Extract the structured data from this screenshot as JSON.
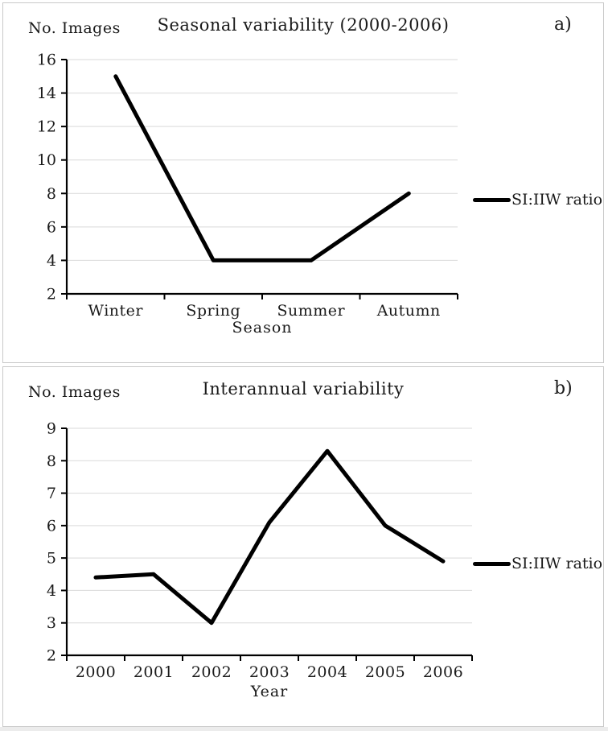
{
  "page": {
    "background": "#ffffff",
    "bottom_edge_color": "#ececec"
  },
  "colors": {
    "line": "#000000",
    "gridline": "#d9d9d9",
    "axis": "#000000",
    "text": "#1a1a1a",
    "panel_border": "#c9c9c9"
  },
  "panels": [
    {
      "corner_label": "a)",
      "y_axis_label": "No. Images",
      "title": "Seasonal variability (2000-2006)",
      "x_axis_label": "Season",
      "legend_label": "SI:IIW ratio"
    },
    {
      "corner_label": "b)",
      "y_axis_label": "No. Images",
      "title": "Interannual variability",
      "x_axis_label": "Year",
      "legend_label": "SI:IIW ratio"
    }
  ],
  "chart_data": [
    {
      "type": "line",
      "title": "Seasonal variability (2000-2006)",
      "categories": [
        "Winter",
        "Spring",
        "Summer",
        "Autumn"
      ],
      "series": [
        {
          "name": "SI:IIW ratio",
          "values": [
            15,
            4,
            4,
            8
          ]
        }
      ],
      "xlabel": "Season",
      "ylabel": "No. Images",
      "ylim": [
        2,
        16
      ],
      "ytick_step": 2,
      "grid": true,
      "legend_position": "right"
    },
    {
      "type": "line",
      "title": "Interannual variability",
      "categories": [
        "2000",
        "2001",
        "2002",
        "2003",
        "2004",
        "2005",
        "2006"
      ],
      "series": [
        {
          "name": "SI:IIW ratio",
          "values": [
            4.4,
            4.5,
            3.0,
            6.1,
            8.3,
            6.0,
            4.9
          ]
        }
      ],
      "xlabel": "Year",
      "ylabel": "No. Images",
      "ylim": [
        2,
        9
      ],
      "ytick_step": 1,
      "grid": true,
      "legend_position": "right"
    }
  ]
}
